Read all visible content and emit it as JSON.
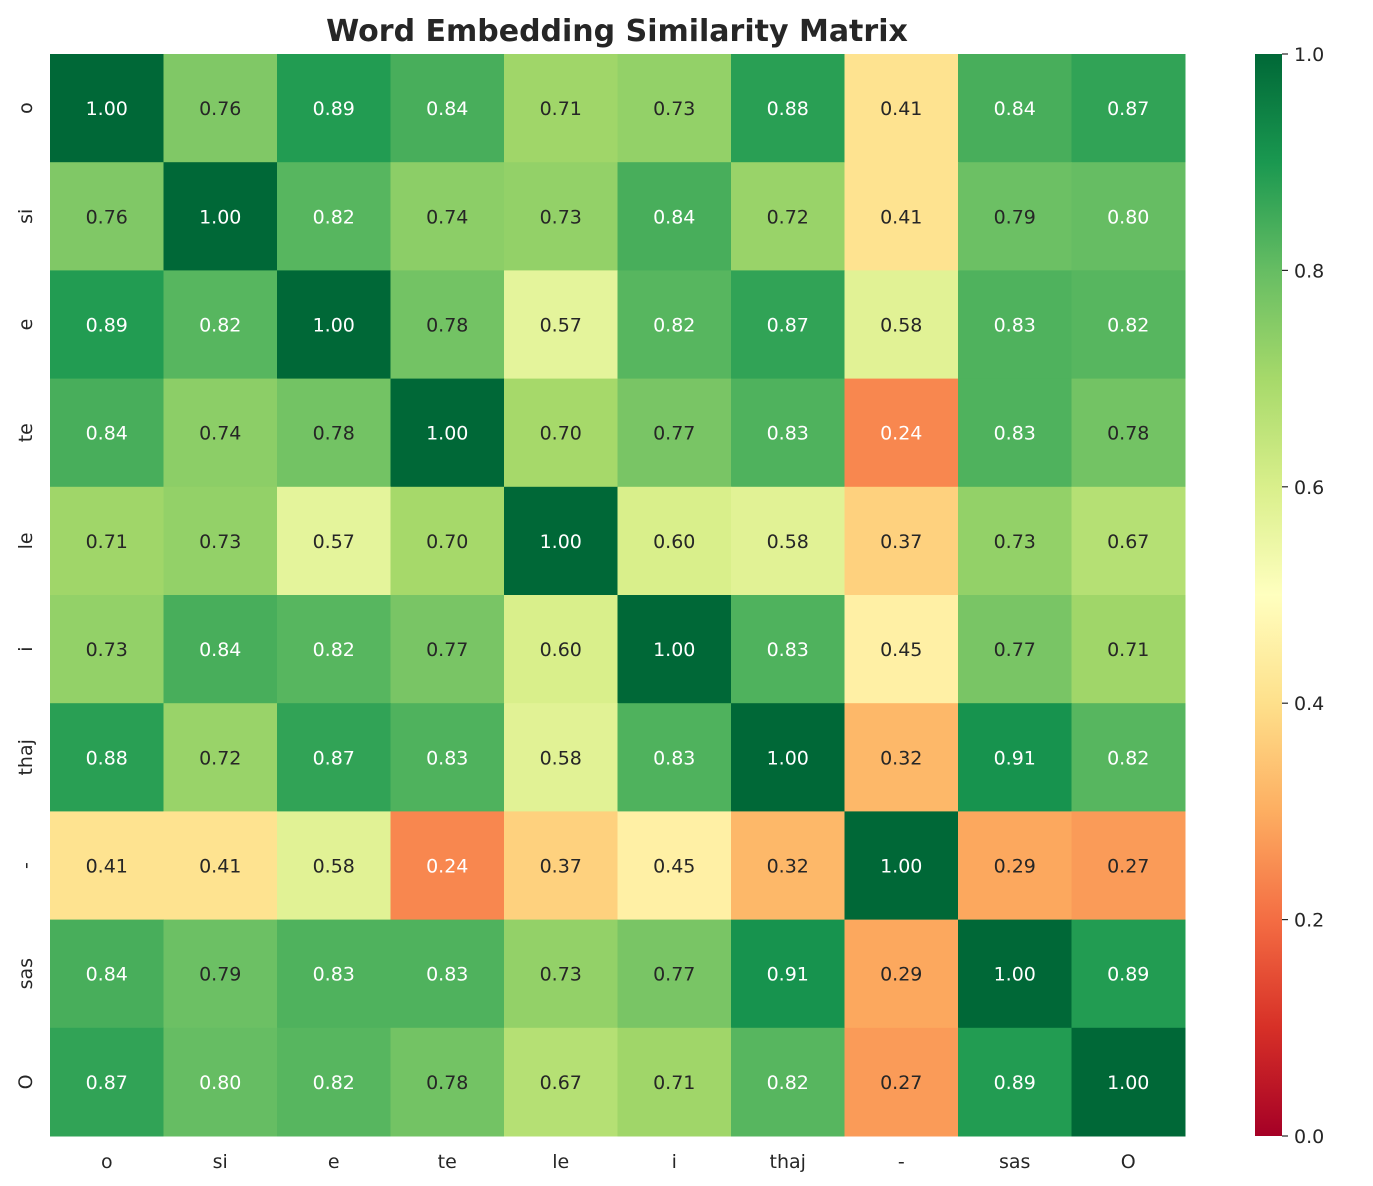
{
  "chart_data": {
    "type": "heatmap",
    "title": "Word Embedding Similarity Matrix",
    "xlabel": "",
    "ylabel": "",
    "x_categories": [
      "o",
      "si",
      "e",
      "te",
      "le",
      "i",
      "thaj",
      "-",
      "sas",
      "O"
    ],
    "y_categories": [
      "o",
      "si",
      "e",
      "te",
      "le",
      "i",
      "thaj",
      "-",
      "sas",
      "O"
    ],
    "values": [
      [
        1.0,
        0.76,
        0.89,
        0.84,
        0.71,
        0.73,
        0.88,
        0.41,
        0.84,
        0.87
      ],
      [
        0.76,
        1.0,
        0.82,
        0.74,
        0.73,
        0.84,
        0.72,
        0.41,
        0.79,
        0.8
      ],
      [
        0.89,
        0.82,
        1.0,
        0.78,
        0.57,
        0.82,
        0.87,
        0.58,
        0.83,
        0.82
      ],
      [
        0.84,
        0.74,
        0.78,
        1.0,
        0.7,
        0.77,
        0.83,
        0.24,
        0.83,
        0.78
      ],
      [
        0.71,
        0.73,
        0.57,
        0.7,
        1.0,
        0.6,
        0.58,
        0.37,
        0.73,
        0.67
      ],
      [
        0.73,
        0.84,
        0.82,
        0.77,
        0.6,
        1.0,
        0.83,
        0.45,
        0.77,
        0.71
      ],
      [
        0.88,
        0.72,
        0.87,
        0.83,
        0.58,
        0.83,
        1.0,
        0.32,
        0.91,
        0.82
      ],
      [
        0.41,
        0.41,
        0.58,
        0.24,
        0.37,
        0.45,
        0.32,
        1.0,
        0.29,
        0.27
      ],
      [
        0.84,
        0.79,
        0.83,
        0.83,
        0.73,
        0.77,
        0.91,
        0.29,
        1.0,
        0.89
      ],
      [
        0.87,
        0.8,
        0.82,
        0.78,
        0.67,
        0.71,
        0.82,
        0.27,
        0.89,
        1.0
      ]
    ],
    "colormap": "RdYlGn",
    "colormap_stops": [
      "#a50026",
      "#d73027",
      "#f46d43",
      "#fdae61",
      "#fee08b",
      "#ffffbf",
      "#d9ef8b",
      "#a6d96a",
      "#66bd63",
      "#1a9850",
      "#006837"
    ],
    "value_range": [
      0.0,
      1.0
    ],
    "annotation_format": "0.00",
    "colorbar": {
      "ticks": [
        0.0,
        0.2,
        0.4,
        0.6,
        0.8,
        1.0
      ],
      "tick_labels": [
        "0.0",
        "0.2",
        "0.4",
        "0.6",
        "0.8",
        "1.0"
      ],
      "placement": "right"
    },
    "grid": false
  }
}
